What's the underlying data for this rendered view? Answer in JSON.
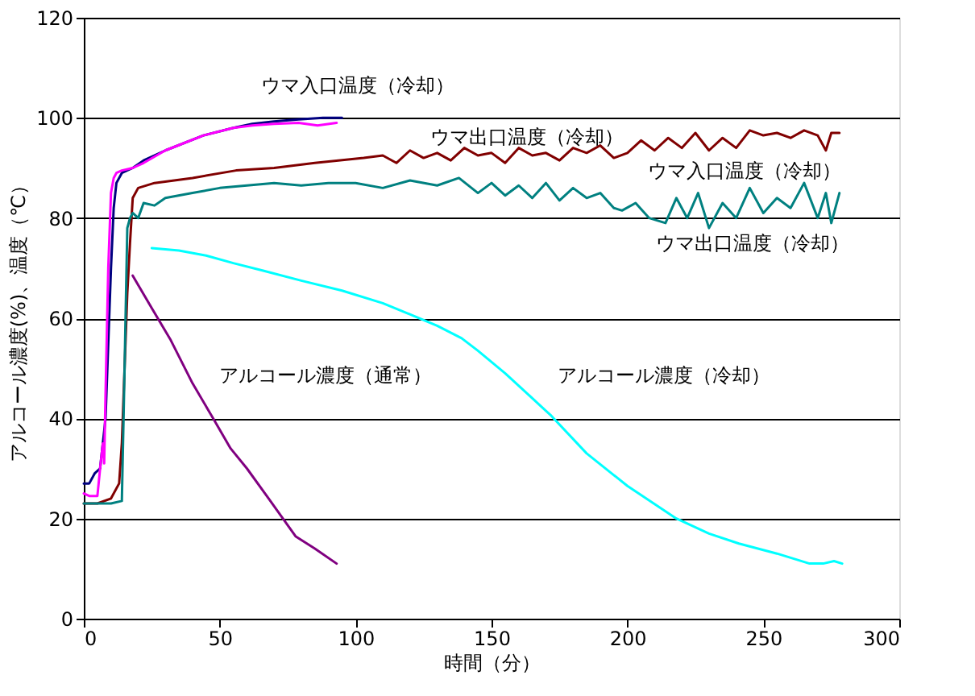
{
  "chart_data": {
    "type": "line",
    "xlabel": "時間（分）",
    "ylabel": "アルコール濃度(%)、温度（℃）",
    "xlim": [
      0,
      300
    ],
    "xticks": [
      0,
      50,
      100,
      150,
      200,
      250,
      300
    ],
    "ylim": [
      0,
      120
    ],
    "yticks": [
      0,
      20,
      40,
      60,
      80,
      100,
      120
    ],
    "grid": "y",
    "legend": false,
    "line_style": "solid",
    "marker": "none",
    "series": [
      {
        "color": "#000080",
        "x": [
          0,
          2,
          4,
          6,
          8,
          9,
          10,
          11,
          12,
          14,
          18,
          22,
          30,
          44,
          55,
          62,
          70,
          79,
          88,
          95
        ],
        "values": [
          27,
          27,
          29,
          30,
          40,
          55,
          70,
          82,
          87,
          89,
          90,
          91.5,
          93.5,
          96.5,
          98,
          98.8,
          99.3,
          99.7,
          100,
          100
        ]
      },
      {
        "color": "#ff00ff",
        "x": [
          0,
          2,
          4,
          5,
          6,
          7,
          7.5,
          8,
          9,
          10,
          11,
          12,
          14,
          18,
          22,
          30,
          44,
          55,
          62,
          70,
          79,
          86,
          93
        ],
        "values": [
          25,
          24.5,
          24.5,
          24.5,
          30,
          35,
          31,
          45,
          70,
          85,
          88,
          89,
          89.5,
          90,
          91,
          93.5,
          96.5,
          98,
          98.5,
          98.8,
          99,
          98.5,
          99
        ]
      },
      {
        "color": "#800000",
        "x": [
          0,
          5,
          10,
          13,
          14,
          15,
          16,
          17,
          18,
          20,
          26,
          40,
          56,
          70,
          85,
          103,
          110,
          115,
          120,
          125,
          130,
          135,
          140,
          145,
          150,
          155,
          160,
          165,
          170,
          175,
          180,
          185,
          190,
          195,
          200,
          205,
          210,
          215,
          220,
          225,
          230,
          235,
          240,
          245,
          250,
          255,
          260,
          265,
          270,
          273,
          275,
          278
        ],
        "values": [
          23,
          23,
          24,
          27,
          35,
          50,
          65,
          75,
          84,
          86,
          87,
          88,
          89.5,
          90,
          91,
          92,
          92.5,
          91,
          93.5,
          92,
          93,
          91.5,
          94,
          92.5,
          93,
          91,
          94,
          92.5,
          93,
          91.5,
          94,
          93,
          94.5,
          92,
          93,
          95.5,
          93.5,
          96,
          94,
          97,
          93.5,
          96,
          94,
          97.5,
          96.5,
          97,
          96,
          97.5,
          96.5,
          93.5,
          97,
          97
        ]
      },
      {
        "color": "#008080",
        "x": [
          0,
          5,
          10,
          14,
          15,
          16,
          17,
          18,
          20,
          22,
          26,
          30,
          40,
          50,
          60,
          70,
          80,
          90,
          100,
          110,
          120,
          130,
          138,
          145,
          150,
          155,
          160,
          165,
          170,
          175,
          180,
          185,
          190,
          195,
          198,
          203,
          208,
          214,
          218,
          222,
          226,
          230,
          235,
          240,
          245,
          250,
          255,
          260,
          265,
          270,
          273,
          275,
          278
        ],
        "values": [
          23,
          23,
          23,
          23.5,
          50,
          78,
          80,
          81,
          80,
          83,
          82.5,
          84,
          85,
          86,
          86.5,
          87,
          86.5,
          87,
          87,
          86,
          87.5,
          86.5,
          88,
          85,
          87,
          84.5,
          86.5,
          84,
          87,
          83.5,
          86,
          84,
          85,
          82,
          81.5,
          83,
          80,
          79,
          84,
          80,
          85,
          78,
          83,
          80,
          86,
          81,
          84,
          82,
          87,
          80,
          85,
          79,
          85
        ]
      },
      {
        "color": "#800080",
        "x": [
          18,
          25,
          32,
          40,
          48,
          54,
          60,
          68,
          78,
          85,
          93
        ],
        "values": [
          68.5,
          62,
          55.6,
          47,
          39.6,
          34,
          30,
          24,
          16.4,
          14,
          11
        ]
      },
      {
        "color": "#00ffff",
        "x": [
          25,
          35,
          45,
          55,
          66,
          80,
          95,
          110,
          119,
          130,
          139,
          145,
          155,
          165,
          172,
          185,
          200,
          218,
          230,
          241,
          255,
          267,
          272,
          276,
          279
        ],
        "values": [
          74,
          73.5,
          72.5,
          71,
          69.5,
          67.5,
          65.5,
          63,
          61,
          58.5,
          56,
          53.5,
          49,
          44,
          40.5,
          33,
          26.5,
          20,
          17,
          15,
          13,
          11,
          11,
          11.5,
          11
        ]
      }
    ],
    "annotations": [
      "ウマ入口温度（冷却）",
      "ウマ出口温度（冷却）",
      "ウマ入口温度（冷却）",
      "ウマ出口温度（冷却）",
      "アルコール濃度（通常）",
      "アルコール濃度（冷却）"
    ]
  }
}
